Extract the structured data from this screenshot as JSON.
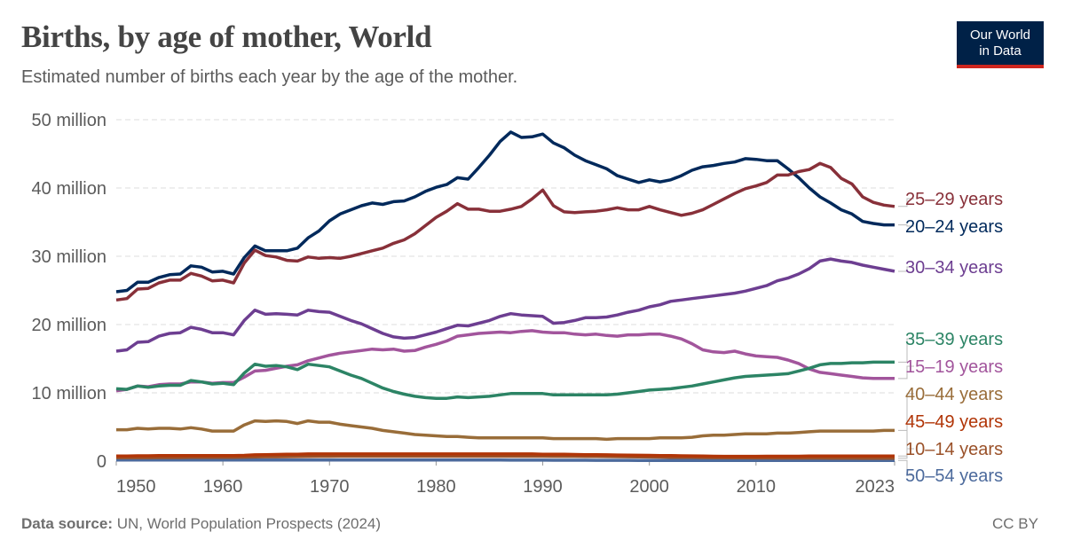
{
  "header": {
    "title": "Births, by age of mother, World",
    "subtitle": "Estimated number of births each year by the age of the mother.",
    "logo_text": "Our World in Data"
  },
  "footer": {
    "source_label": "Data source:",
    "source_text": "UN, World Population Prospects (2024)",
    "license": "CC BY"
  },
  "chart_data": {
    "type": "line",
    "title": "Births, by age of mother, World",
    "x_start": 1950,
    "x_end": 2023,
    "xlim": [
      1950,
      2023
    ],
    "ylim": [
      0,
      50000000
    ],
    "x_ticks": [
      "1950",
      "1960",
      "1970",
      "1980",
      "1990",
      "2000",
      "2010",
      "2023"
    ],
    "x_tick_values": [
      1950,
      1960,
      1970,
      1980,
      1990,
      2000,
      2010,
      2023
    ],
    "y_ticks": [
      "0",
      "10 million",
      "20 million",
      "30 million",
      "40 million",
      "50 million"
    ],
    "y_tick_values": [
      0,
      10,
      20,
      30,
      40,
      50
    ],
    "y_unit": "million",
    "grid": "horizontal-dashed",
    "legend": "right-end-labels",
    "series": [
      {
        "name": "25–29 years",
        "color": "#883039",
        "values": [
          23.6,
          23.8,
          25.2,
          25.3,
          26.1,
          26.5,
          26.5,
          27.5,
          27.1,
          26.4,
          26.5,
          26.1,
          29,
          30.9,
          30.1,
          29.9,
          29.4,
          29.3,
          29.9,
          29.7,
          29.8,
          29.7,
          30.0,
          30.4,
          30.8,
          31.2,
          31.9,
          32.4,
          33.3,
          34.5,
          35.7,
          36.6,
          37.7,
          36.9,
          36.9,
          36.6,
          36.6,
          36.9,
          37.3,
          38.4,
          39.7,
          37.4,
          36.5,
          36.4,
          36.5,
          36.6,
          36.8,
          37.1,
          36.8,
          36.8,
          37.3,
          36.8,
          36.4,
          36.0,
          36.3,
          36.8,
          37.6,
          38.4,
          39.2,
          39.9,
          40.3,
          40.8,
          41.9,
          41.9,
          42.4,
          42.7,
          43.6,
          43,
          41.4,
          40.6,
          38.7,
          37.9,
          37.5,
          37.3
        ]
      },
      {
        "name": "20–24 years",
        "color": "#00295b",
        "values": [
          24.8,
          25,
          26.2,
          26.2,
          26.9,
          27.3,
          27.4,
          28.6,
          28.4,
          27.7,
          27.8,
          27.4,
          29.8,
          31.5,
          30.8,
          30.8,
          30.8,
          31.2,
          32.7,
          33.7,
          35.2,
          36.2,
          36.8,
          37.4,
          37.8,
          37.6,
          38,
          38.1,
          38.7,
          39.5,
          40.1,
          40.5,
          41.5,
          41.3,
          43,
          44.8,
          46.8,
          48.2,
          47.4,
          47.5,
          47.9,
          46.6,
          45.9,
          44.8,
          44,
          43.4,
          42.8,
          41.8,
          41.3,
          40.8,
          41.2,
          40.9,
          41.2,
          41.8,
          42.6,
          43.1,
          43.3,
          43.6,
          43.8,
          44.3,
          44.2,
          44,
          44,
          42.8,
          41.5,
          40,
          38.7,
          37.8,
          36.8,
          36.2,
          35.1,
          34.8,
          34.6,
          34.6
        ]
      },
      {
        "name": "30–34 years",
        "color": "#6d3e91",
        "values": [
          16.1,
          16.3,
          17.4,
          17.5,
          18.3,
          18.7,
          18.8,
          19.6,
          19.3,
          18.8,
          18.8,
          18.5,
          20.6,
          22.1,
          21.5,
          21.6,
          21.5,
          21.4,
          22.1,
          21.9,
          21.8,
          21.2,
          20.6,
          20.1,
          19.4,
          18.7,
          18.2,
          18.0,
          18.1,
          18.5,
          18.9,
          19.4,
          19.9,
          19.8,
          20.2,
          20.6,
          21.2,
          21.6,
          21.4,
          21.3,
          21.2,
          20.2,
          20.3,
          20.6,
          21,
          21,
          21.1,
          21.4,
          21.8,
          22.1,
          22.6,
          22.9,
          23.4,
          23.6,
          23.8,
          24,
          24.2,
          24.4,
          24.6,
          24.9,
          25.3,
          25.7,
          26.4,
          26.8,
          27.4,
          28.2,
          29.3,
          29.6,
          29.3,
          29.1,
          28.7,
          28.4,
          28.1,
          27.8
        ]
      },
      {
        "name": "35–39 years",
        "color": "#2c8465",
        "values": [
          10.6,
          10.5,
          11,
          10.8,
          11,
          11.1,
          11.1,
          11.8,
          11.6,
          11.3,
          11.4,
          11.2,
          12.9,
          14.2,
          13.9,
          14,
          13.8,
          13.4,
          14.2,
          14,
          13.8,
          13.2,
          12.6,
          12.1,
          11.4,
          10.7,
          10.2,
          9.8,
          9.5,
          9.3,
          9.2,
          9.2,
          9.4,
          9.3,
          9.4,
          9.5,
          9.7,
          9.9,
          9.9,
          9.9,
          9.9,
          9.7,
          9.7,
          9.7,
          9.7,
          9.7,
          9.7,
          9.8,
          10,
          10.2,
          10.4,
          10.5,
          10.6,
          10.8,
          11,
          11.3,
          11.6,
          11.9,
          12.2,
          12.4,
          12.5,
          12.6,
          12.7,
          12.8,
          13.2,
          13.6,
          14.1,
          14.3,
          14.3,
          14.4,
          14.4,
          14.5,
          14.5,
          14.5
        ]
      },
      {
        "name": "15–19 years",
        "color": "#a2559c",
        "values": [
          10.3,
          10.5,
          11,
          10.9,
          11.2,
          11.3,
          11.3,
          11.6,
          11.6,
          11.4,
          11.5,
          11.5,
          12.3,
          13.2,
          13.3,
          13.6,
          13.9,
          14.1,
          14.7,
          15.1,
          15.5,
          15.8,
          16.0,
          16.2,
          16.4,
          16.3,
          16.4,
          16.1,
          16.2,
          16.7,
          17.1,
          17.6,
          18.3,
          18.5,
          18.7,
          18.8,
          18.9,
          18.8,
          19,
          19.1,
          18.9,
          18.8,
          18.8,
          18.6,
          18.5,
          18.6,
          18.4,
          18.3,
          18.5,
          18.5,
          18.6,
          18.6,
          18.3,
          17.9,
          17.2,
          16.3,
          16.0,
          15.9,
          16.1,
          15.7,
          15.4,
          15.3,
          15.2,
          14.8,
          14.3,
          13.5,
          13,
          12.8,
          12.6,
          12.4,
          12.2,
          12.1,
          12.1,
          12.1
        ]
      },
      {
        "name": "40–44 years",
        "color": "#996d39",
        "values": [
          4.6,
          4.6,
          4.8,
          4.7,
          4.8,
          4.8,
          4.7,
          4.9,
          4.7,
          4.4,
          4.4,
          4.4,
          5.3,
          5.9,
          5.8,
          5.9,
          5.8,
          5.5,
          5.9,
          5.7,
          5.7,
          5.4,
          5.2,
          5,
          4.8,
          4.5,
          4.3,
          4.1,
          3.9,
          3.8,
          3.7,
          3.6,
          3.6,
          3.5,
          3.4,
          3.4,
          3.4,
          3.4,
          3.4,
          3.4,
          3.4,
          3.3,
          3.3,
          3.3,
          3.3,
          3.3,
          3.2,
          3.3,
          3.3,
          3.3,
          3.3,
          3.4,
          3.4,
          3.4,
          3.5,
          3.7,
          3.8,
          3.8,
          3.9,
          4.0,
          4.0,
          4.0,
          4.1,
          4.1,
          4.2,
          4.3,
          4.4,
          4.4,
          4.4,
          4.4,
          4.4,
          4.4,
          4.5,
          4.5
        ]
      },
      {
        "name": "45–49 years",
        "color": "#b13507",
        "values": [
          0.75,
          0.75,
          0.78,
          0.78,
          0.8,
          0.8,
          0.8,
          0.82,
          0.82,
          0.8,
          0.8,
          0.8,
          0.85,
          0.92,
          0.95,
          0.98,
          1.0,
          1.0,
          1.05,
          1.05,
          1.05,
          1.05,
          1.05,
          1.05,
          1.05,
          1.05,
          1.05,
          1.05,
          1.05,
          1.05,
          1.05,
          1.05,
          1.05,
          1.05,
          1.05,
          1.05,
          1.05,
          1.05,
          1.05,
          1.05,
          1.0,
          1.0,
          1.0,
          0.98,
          0.95,
          0.95,
          0.92,
          0.9,
          0.88,
          0.86,
          0.85,
          0.82,
          0.8,
          0.78,
          0.76,
          0.74,
          0.72,
          0.7,
          0.7,
          0.7,
          0.7,
          0.72,
          0.72,
          0.72,
          0.72,
          0.74,
          0.74,
          0.74,
          0.74,
          0.74,
          0.74,
          0.74,
          0.74,
          0.74
        ]
      },
      {
        "name": "10–14 years",
        "color": "#9a5129",
        "values": [
          0.5,
          0.5,
          0.5,
          0.5,
          0.52,
          0.52,
          0.52,
          0.54,
          0.54,
          0.54,
          0.55,
          0.55,
          0.58,
          0.62,
          0.63,
          0.64,
          0.65,
          0.66,
          0.68,
          0.7,
          0.7,
          0.72,
          0.72,
          0.72,
          0.72,
          0.72,
          0.72,
          0.72,
          0.72,
          0.72,
          0.72,
          0.72,
          0.72,
          0.72,
          0.72,
          0.72,
          0.72,
          0.72,
          0.72,
          0.72,
          0.72,
          0.7,
          0.7,
          0.7,
          0.68,
          0.68,
          0.66,
          0.65,
          0.64,
          0.62,
          0.6,
          0.58,
          0.56,
          0.55,
          0.54,
          0.52,
          0.5,
          0.5,
          0.48,
          0.48,
          0.47,
          0.47,
          0.46,
          0.46,
          0.45,
          0.45,
          0.45,
          0.44,
          0.44,
          0.44,
          0.43,
          0.43,
          0.43,
          0.43
        ]
      },
      {
        "name": "50–54 years",
        "color": "#4c6a9c",
        "values": [
          0.15,
          0.15,
          0.15,
          0.15,
          0.15,
          0.15,
          0.15,
          0.15,
          0.15,
          0.15,
          0.15,
          0.15,
          0.16,
          0.17,
          0.17,
          0.17,
          0.17,
          0.17,
          0.17,
          0.17,
          0.17,
          0.17,
          0.17,
          0.16,
          0.16,
          0.16,
          0.16,
          0.16,
          0.15,
          0.15,
          0.15,
          0.15,
          0.15,
          0.15,
          0.15,
          0.15,
          0.15,
          0.14,
          0.14,
          0.14,
          0.14,
          0.13,
          0.13,
          0.13,
          0.13,
          0.12,
          0.12,
          0.12,
          0.12,
          0.11,
          0.11,
          0.11,
          0.11,
          0.1,
          0.1,
          0.1,
          0.1,
          0.1,
          0.1,
          0.1,
          0.1,
          0.1,
          0.1,
          0.1,
          0.1,
          0.1,
          0.1,
          0.1,
          0.1,
          0.1,
          0.1,
          0.1,
          0.1,
          0.1
        ]
      }
    ]
  }
}
